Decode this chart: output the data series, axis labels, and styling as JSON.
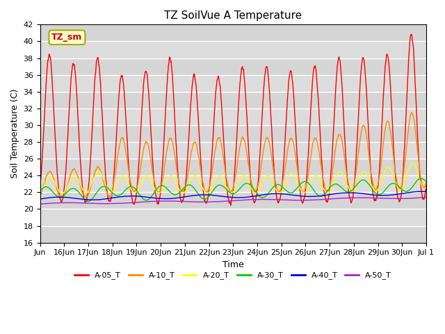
{
  "title": "TZ SoilVue A Temperature",
  "xlabel": "Time",
  "ylabel": "Soil Temperature (C)",
  "ylim": [
    16,
    42
  ],
  "yticks": [
    16,
    18,
    20,
    22,
    24,
    26,
    28,
    30,
    32,
    34,
    36,
    38,
    40,
    42
  ],
  "series_colors": {
    "A-05_T": "#ff0000",
    "A-10_T": "#ff8800",
    "A-20_T": "#ffff00",
    "A-30_T": "#00cc00",
    "A-40_T": "#0000dd",
    "A-50_T": "#aa22cc"
  },
  "legend_labels": [
    "A-05_T",
    "A-10_T",
    "A-20_T",
    "A-30_T",
    "A-40_T",
    "A-50_T"
  ],
  "annotation_text": "TZ_sm",
  "annotation_box_color": "#ffffcc",
  "annotation_text_color": "#cc0000",
  "plot_bg_color": "#dcdcdc",
  "n_days": 16,
  "start_day": 15,
  "pts_per_day": 144
}
